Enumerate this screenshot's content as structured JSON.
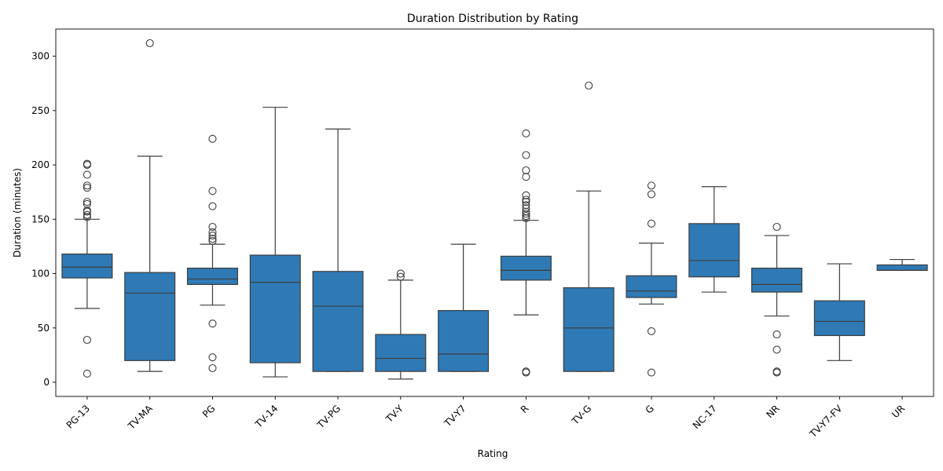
{
  "chart_data": {
    "type": "box",
    "title": "Duration Distribution by Rating",
    "xlabel": "Rating",
    "ylabel": "Duration (minutes)",
    "ylim": [
      -13,
      325
    ],
    "yticks": [
      0,
      50,
      100,
      150,
      200,
      250,
      300
    ],
    "grid": false,
    "legend": "none",
    "box_color": "#2f7ab5",
    "line_color": "#3d3d3d",
    "categories": [
      "PG-13",
      "TV-MA",
      "PG",
      "TV-14",
      "TV-PG",
      "TV-Y",
      "TV-Y7",
      "R",
      "TV-G",
      "G",
      "NC-17",
      "NR",
      "TV-Y7-FV",
      "UR"
    ],
    "boxes": [
      {
        "label": "PG-13",
        "whisker_low": 68,
        "q1": 96,
        "median": 106,
        "q3": 118,
        "whisker_high": 150,
        "outliers": [
          8,
          39,
          152,
          154,
          157,
          158,
          164,
          166,
          179,
          181,
          191,
          200,
          201
        ]
      },
      {
        "label": "TV-MA",
        "whisker_low": 10,
        "q1": 20,
        "median": 82,
        "q3": 101,
        "whisker_high": 208,
        "outliers": [
          312
        ]
      },
      {
        "label": "PG",
        "whisker_low": 71,
        "q1": 90,
        "median": 95,
        "q3": 105,
        "whisker_high": 127,
        "outliers": [
          13,
          23,
          54,
          130,
          132,
          135,
          138,
          143,
          162,
          176,
          224
        ]
      },
      {
        "label": "TV-14",
        "whisker_low": 5,
        "q1": 18,
        "median": 92,
        "q3": 117,
        "whisker_high": 253,
        "outliers": []
      },
      {
        "label": "TV-PG",
        "whisker_low": 10,
        "q1": 10,
        "median": 70,
        "q3": 102,
        "whisker_high": 233,
        "outliers": []
      },
      {
        "label": "TV-Y",
        "whisker_low": 3,
        "q1": 10,
        "median": 22,
        "q3": 44,
        "whisker_high": 94,
        "outliers": [
          97,
          100
        ]
      },
      {
        "label": "TV-Y7",
        "whisker_low": 10,
        "q1": 10,
        "median": 26,
        "q3": 66,
        "whisker_high": 127,
        "outliers": []
      },
      {
        "label": "R",
        "whisker_low": 62,
        "q1": 94,
        "median": 103,
        "q3": 116,
        "whisker_high": 149,
        "outliers": [
          9,
          10,
          151,
          153,
          155,
          157,
          160,
          163,
          166,
          168,
          172,
          189,
          195,
          209,
          229
        ]
      },
      {
        "label": "TV-G",
        "whisker_low": 10,
        "q1": 10,
        "median": 50,
        "q3": 87,
        "whisker_high": 176,
        "outliers": [
          273
        ]
      },
      {
        "label": "G",
        "whisker_low": 72,
        "q1": 78,
        "median": 84,
        "q3": 98,
        "whisker_high": 128,
        "outliers": [
          9,
          47,
          146,
          173,
          181
        ]
      },
      {
        "label": "NC-17",
        "whisker_low": 83,
        "q1": 97,
        "median": 112,
        "q3": 146,
        "whisker_high": 180,
        "outliers": []
      },
      {
        "label": "NR",
        "whisker_low": 61,
        "q1": 83,
        "median": 90,
        "q3": 105,
        "whisker_high": 135,
        "outliers": [
          9,
          10,
          30,
          44,
          143
        ]
      },
      {
        "label": "TV-Y7-FV",
        "whisker_low": 20,
        "q1": 43,
        "median": 56,
        "q3": 75,
        "whisker_high": 109,
        "outliers": []
      },
      {
        "label": "UR",
        "whisker_low": 103,
        "q1": 103,
        "median": 103,
        "q3": 108,
        "whisker_high": 113,
        "outliers": []
      }
    ]
  }
}
